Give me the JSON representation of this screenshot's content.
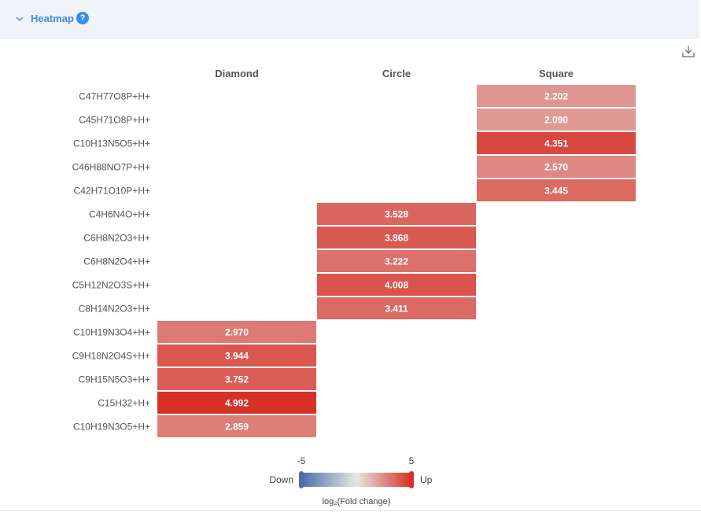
{
  "header": {
    "title": "Heatmap",
    "help_glyph": "?",
    "collapse_icon": "chevron-down-icon",
    "accent_color": "#3d8ee0"
  },
  "toolbar": {
    "download_icon": "download-icon"
  },
  "chart_data": {
    "type": "heatmap",
    "columns": [
      "Diamond",
      "Circle",
      "Square"
    ],
    "rows": [
      "C47H77O8P+H+",
      "C45H71O8P+H+",
      "C10H13N5O5+H+",
      "C46H88NO7P+H+",
      "C42H71O10P+H+",
      "C4H6N4O+H+",
      "C6H8N2O3+H+",
      "C6H8N2O4+H+",
      "C5H12N2O3S+H+",
      "C8H14N2O3+H+",
      "C10H19N3O4+H+",
      "C9H18N2O4S+H+",
      "C9H15N5O3+H+",
      "C15H32+H+",
      "C10H19N3O5+H+"
    ],
    "values": [
      [
        null,
        null,
        2.202
      ],
      [
        null,
        null,
        2.09
      ],
      [
        null,
        null,
        4.351
      ],
      [
        null,
        null,
        2.57
      ],
      [
        null,
        null,
        3.445
      ],
      [
        null,
        3.528,
        null
      ],
      [
        null,
        3.868,
        null
      ],
      [
        null,
        3.222,
        null
      ],
      [
        null,
        4.008,
        null
      ],
      [
        null,
        3.411,
        null
      ],
      [
        2.97,
        null,
        null
      ],
      [
        3.944,
        null,
        null
      ],
      [
        3.752,
        null,
        null
      ],
      [
        4.992,
        null,
        null
      ],
      [
        2.859,
        null,
        null
      ]
    ],
    "labels": [
      [
        null,
        null,
        "2.202"
      ],
      [
        null,
        null,
        "2.090"
      ],
      [
        null,
        null,
        "4.351"
      ],
      [
        null,
        null,
        "2.570"
      ],
      [
        null,
        null,
        "3.445"
      ],
      [
        null,
        "3.528",
        null
      ],
      [
        null,
        "3.868",
        null
      ],
      [
        null,
        "3.222",
        null
      ],
      [
        null,
        "4.008",
        null
      ],
      [
        null,
        "3.411",
        null
      ],
      [
        "2.970",
        null,
        null
      ],
      [
        "3.944",
        null,
        null
      ],
      [
        "3.752",
        null,
        null
      ],
      [
        "4.992",
        null,
        null
      ],
      [
        "2.859",
        null,
        null
      ]
    ],
    "color_scale": {
      "min": -5,
      "max": 5,
      "min_label": "-5",
      "max_label": "5",
      "low_color": "#4a6fa5",
      "mid_color": "#e6e6e6",
      "high_color": "#d73027",
      "low_text": "Down",
      "high_text": "Up",
      "title": "log₂(Fold change)"
    }
  }
}
